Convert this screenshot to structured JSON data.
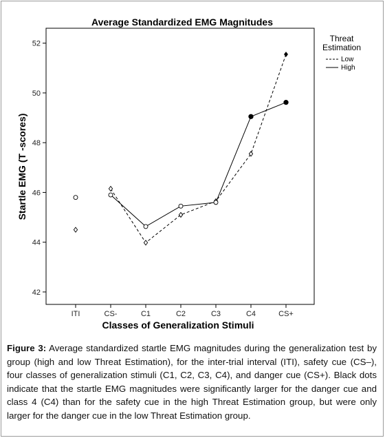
{
  "chart_data": {
    "type": "line",
    "title": "Average Standardized EMG Magnitudes",
    "xlabel": "Classes of Generalization Stimuli",
    "ylabel": "Startle EMG (T -scores)",
    "categories": [
      "ITI",
      "CS-",
      "C1",
      "C2",
      "C3",
      "C4",
      "CS+"
    ],
    "yticks": [
      42,
      44,
      46,
      48,
      50,
      52
    ],
    "ylim": [
      41.5,
      52.6
    ],
    "grid": false,
    "legend": {
      "title_lines": [
        "Threat",
        "Estimation"
      ],
      "placement": "top-right, outside plot"
    },
    "series": [
      {
        "name": "Low",
        "line_style": "dashed",
        "marker": "diamond",
        "values": [
          44.5,
          46.15,
          43.98,
          45.1,
          45.65,
          47.55,
          51.55
        ],
        "filled": [
          false,
          false,
          false,
          false,
          false,
          false,
          true
        ],
        "connected_from_index": 1
      },
      {
        "name": "High",
        "line_style": "solid",
        "marker": "circle",
        "values": [
          45.8,
          45.9,
          44.63,
          45.45,
          45.6,
          49.05,
          49.62
        ],
        "filled": [
          false,
          false,
          false,
          false,
          false,
          true,
          true
        ],
        "connected_from_index": 1
      }
    ]
  },
  "caption": {
    "label": "Figure 3:",
    "text": " Average standardized startle EMG magnitudes during the generalization test by group (high and low Threat Estimation), for the inter-trial interval (ITI), safety cue (CS–), four classes of generalization stimuli (C1, C2, C3, C4), and danger cue (CS+). Black dots indicate that the startle EMG magnitudes were significantly larger for the danger cue and class 4 (C4) than for the safety cue in the high Threat Estimation group, but were only larger for the danger cue in the low Threat Estimation group."
  }
}
